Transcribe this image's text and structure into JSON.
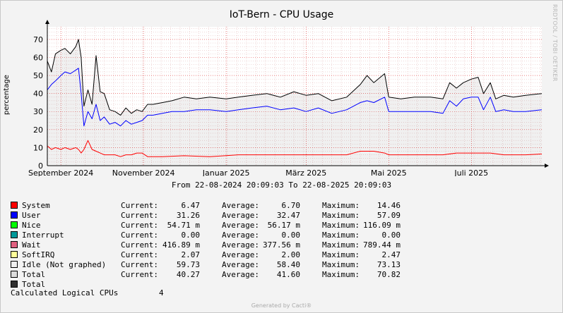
{
  "chart_data": {
    "type": "line",
    "title": "IoT-Bern - CPU Usage",
    "ylabel": "percentage",
    "ylim": [
      0,
      77
    ],
    "yticks": [
      0,
      10,
      20,
      30,
      40,
      50,
      60,
      70
    ],
    "x_range": [
      "2024-08-22",
      "2025-08-22"
    ],
    "x_ticks": [
      {
        "date": "2024-09-01",
        "label": "September 2024"
      },
      {
        "date": "2024-11-01",
        "label": "November 2024"
      },
      {
        "date": "2025-01-01",
        "label": "Januar 2025"
      },
      {
        "date": "2025-03-01",
        "label": "März 2025"
      },
      {
        "date": "2025-05-01",
        "label": "Mai 2025"
      },
      {
        "date": "2025-07-01",
        "label": "Juli 2025"
      }
    ],
    "grid": true,
    "series": [
      {
        "name": "Total",
        "color": "#000000",
        "style": "line-with-light-fill",
        "points": [
          [
            "2024-08-22",
            58
          ],
          [
            "2024-08-25",
            52
          ],
          [
            "2024-08-28",
            62
          ],
          [
            "2024-09-01",
            64
          ],
          [
            "2024-09-04",
            65
          ],
          [
            "2024-09-08",
            62
          ],
          [
            "2024-09-12",
            66
          ],
          [
            "2024-09-14",
            70
          ],
          [
            "2024-09-16",
            60
          ],
          [
            "2024-09-18",
            33
          ],
          [
            "2024-09-21",
            42
          ],
          [
            "2024-09-24",
            34
          ],
          [
            "2024-09-27",
            61
          ],
          [
            "2024-09-30",
            41
          ],
          [
            "2024-10-03",
            40
          ],
          [
            "2024-10-07",
            31
          ],
          [
            "2024-10-11",
            30
          ],
          [
            "2024-10-15",
            28
          ],
          [
            "2024-10-19",
            32
          ],
          [
            "2024-10-23",
            29
          ],
          [
            "2024-10-27",
            31
          ],
          [
            "2024-10-31",
            30
          ],
          [
            "2024-11-04",
            34
          ],
          [
            "2024-11-08",
            34
          ],
          [
            "2024-11-15",
            35
          ],
          [
            "2024-11-22",
            36
          ],
          [
            "2024-12-01",
            38
          ],
          [
            "2024-12-10",
            37
          ],
          [
            "2024-12-20",
            38
          ],
          [
            "2025-01-01",
            37
          ],
          [
            "2025-01-10",
            38
          ],
          [
            "2025-01-20",
            39
          ],
          [
            "2025-01-31",
            40
          ],
          [
            "2025-02-10",
            38
          ],
          [
            "2025-02-20",
            41
          ],
          [
            "2025-03-01",
            39
          ],
          [
            "2025-03-10",
            40
          ],
          [
            "2025-03-20",
            36
          ],
          [
            "2025-03-31",
            38
          ],
          [
            "2025-04-10",
            45
          ],
          [
            "2025-04-15",
            50
          ],
          [
            "2025-04-20",
            46
          ],
          [
            "2025-04-28",
            51
          ],
          [
            "2025-05-01",
            38
          ],
          [
            "2025-05-10",
            37
          ],
          [
            "2025-05-20",
            38
          ],
          [
            "2025-06-01",
            38
          ],
          [
            "2025-06-10",
            37
          ],
          [
            "2025-06-15",
            46
          ],
          [
            "2025-06-20",
            43
          ],
          [
            "2025-06-25",
            46
          ],
          [
            "2025-07-01",
            48
          ],
          [
            "2025-07-06",
            49
          ],
          [
            "2025-07-10",
            40
          ],
          [
            "2025-07-15",
            46
          ],
          [
            "2025-07-19",
            37
          ],
          [
            "2025-07-25",
            39
          ],
          [
            "2025-08-01",
            38
          ],
          [
            "2025-08-10",
            39
          ],
          [
            "2025-08-22",
            40
          ]
        ]
      },
      {
        "name": "User",
        "color": "#0000ff",
        "style": "line",
        "points": [
          [
            "2024-08-22",
            42
          ],
          [
            "2024-08-25",
            45
          ],
          [
            "2024-08-28",
            47
          ],
          [
            "2024-09-01",
            50
          ],
          [
            "2024-09-04",
            52
          ],
          [
            "2024-09-08",
            51
          ],
          [
            "2024-09-12",
            53
          ],
          [
            "2024-09-14",
            54
          ],
          [
            "2024-09-16",
            40
          ],
          [
            "2024-09-18",
            22
          ],
          [
            "2024-09-21",
            30
          ],
          [
            "2024-09-24",
            26
          ],
          [
            "2024-09-27",
            34
          ],
          [
            "2024-09-30",
            25
          ],
          [
            "2024-10-03",
            27
          ],
          [
            "2024-10-07",
            23
          ],
          [
            "2024-10-11",
            24
          ],
          [
            "2024-10-15",
            22
          ],
          [
            "2024-10-19",
            25
          ],
          [
            "2024-10-23",
            23
          ],
          [
            "2024-10-27",
            24
          ],
          [
            "2024-10-31",
            25
          ],
          [
            "2024-11-04",
            28
          ],
          [
            "2024-11-08",
            28
          ],
          [
            "2024-11-15",
            29
          ],
          [
            "2024-11-22",
            30
          ],
          [
            "2024-12-01",
            30
          ],
          [
            "2024-12-10",
            31
          ],
          [
            "2024-12-20",
            31
          ],
          [
            "2025-01-01",
            30
          ],
          [
            "2025-01-10",
            31
          ],
          [
            "2025-01-20",
            32
          ],
          [
            "2025-01-31",
            33
          ],
          [
            "2025-02-10",
            31
          ],
          [
            "2025-02-20",
            32
          ],
          [
            "2025-03-01",
            30
          ],
          [
            "2025-03-10",
            32
          ],
          [
            "2025-03-20",
            29
          ],
          [
            "2025-03-31",
            31
          ],
          [
            "2025-04-10",
            35
          ],
          [
            "2025-04-15",
            36
          ],
          [
            "2025-04-20",
            35
          ],
          [
            "2025-04-28",
            38
          ],
          [
            "2025-05-01",
            30
          ],
          [
            "2025-05-10",
            30
          ],
          [
            "2025-05-20",
            30
          ],
          [
            "2025-06-01",
            30
          ],
          [
            "2025-06-10",
            29
          ],
          [
            "2025-06-15",
            36
          ],
          [
            "2025-06-20",
            33
          ],
          [
            "2025-06-25",
            37
          ],
          [
            "2025-07-01",
            38
          ],
          [
            "2025-07-06",
            38
          ],
          [
            "2025-07-10",
            31
          ],
          [
            "2025-07-15",
            38
          ],
          [
            "2025-07-19",
            30
          ],
          [
            "2025-07-25",
            31
          ],
          [
            "2025-08-01",
            30
          ],
          [
            "2025-08-10",
            30
          ],
          [
            "2025-08-22",
            31
          ]
        ]
      },
      {
        "name": "System",
        "color": "#ff0000",
        "style": "line",
        "points": [
          [
            "2024-08-22",
            11
          ],
          [
            "2024-08-25",
            9
          ],
          [
            "2024-08-28",
            10
          ],
          [
            "2024-09-01",
            9
          ],
          [
            "2024-09-04",
            10
          ],
          [
            "2024-09-08",
            9
          ],
          [
            "2024-09-12",
            10
          ],
          [
            "2024-09-14",
            9
          ],
          [
            "2024-09-16",
            7
          ],
          [
            "2024-09-18",
            9
          ],
          [
            "2024-09-21",
            14
          ],
          [
            "2024-09-24",
            9
          ],
          [
            "2024-09-27",
            8
          ],
          [
            "2024-09-30",
            7
          ],
          [
            "2024-10-03",
            6
          ],
          [
            "2024-10-07",
            6
          ],
          [
            "2024-10-11",
            6
          ],
          [
            "2024-10-15",
            5
          ],
          [
            "2024-10-19",
            6
          ],
          [
            "2024-10-23",
            6
          ],
          [
            "2024-10-27",
            7
          ],
          [
            "2024-10-31",
            7
          ],
          [
            "2024-11-04",
            5
          ],
          [
            "2024-11-15",
            5
          ],
          [
            "2024-12-01",
            5.5
          ],
          [
            "2024-12-20",
            5
          ],
          [
            "2025-01-10",
            6
          ],
          [
            "2025-01-31",
            6
          ],
          [
            "2025-02-20",
            6
          ],
          [
            "2025-03-10",
            6
          ],
          [
            "2025-03-31",
            6
          ],
          [
            "2025-04-10",
            8
          ],
          [
            "2025-04-20",
            8
          ],
          [
            "2025-04-28",
            7
          ],
          [
            "2025-05-01",
            6
          ],
          [
            "2025-05-20",
            6
          ],
          [
            "2025-06-10",
            6
          ],
          [
            "2025-06-20",
            7
          ],
          [
            "2025-07-06",
            7
          ],
          [
            "2025-07-15",
            7
          ],
          [
            "2025-07-25",
            6
          ],
          [
            "2025-08-10",
            6
          ],
          [
            "2025-08-22",
            6.5
          ]
        ]
      }
    ]
  },
  "legend": [
    {
      "label": "System",
      "color": "#ff0000",
      "current": "6.47",
      "average": "6.70",
      "maximum": "14.46"
    },
    {
      "label": "User",
      "color": "#0000ff",
      "current": "31.26",
      "average": "32.47",
      "maximum": "57.09"
    },
    {
      "label": "Nice",
      "color": "#00ff00",
      "current": "54.71 m",
      "average": "56.17 m",
      "maximum": "116.09 m"
    },
    {
      "label": "Interrupt",
      "color": "#009999",
      "current": "0.00",
      "average": "0.00",
      "maximum": "0.00"
    },
    {
      "label": "Wait",
      "color": "#e06080",
      "current": "416.89 m",
      "average": "377.56 m",
      "maximum": "789.44 m"
    },
    {
      "label": "SoftIRQ",
      "color": "#ffff99",
      "current": "2.07",
      "average": "2.00",
      "maximum": "2.47"
    },
    {
      "label": "Idle (Not graphed)",
      "color": "#f0f0f0",
      "current": "59.73",
      "average": "58.40",
      "maximum": "73.13"
    },
    {
      "label": "Total",
      "color": "#dcdcdc",
      "current": "40.27",
      "average": "41.60",
      "maximum": "70.82"
    },
    {
      "label": "Total",
      "color": "#303030"
    }
  ],
  "legend_keys": {
    "current": "Current:",
    "average": "Average:",
    "maximum": "Maximum:"
  },
  "date_range": "From 22-08-2024 20:09:03 To 22-08-2025 20:09:03",
  "cpu_count": {
    "label": "Calculated Logical CPUs",
    "value": "4"
  },
  "rrdtool_tag": "RRDTOOL / TOBI OETIKER",
  "footer": "Generated by Cacti®"
}
